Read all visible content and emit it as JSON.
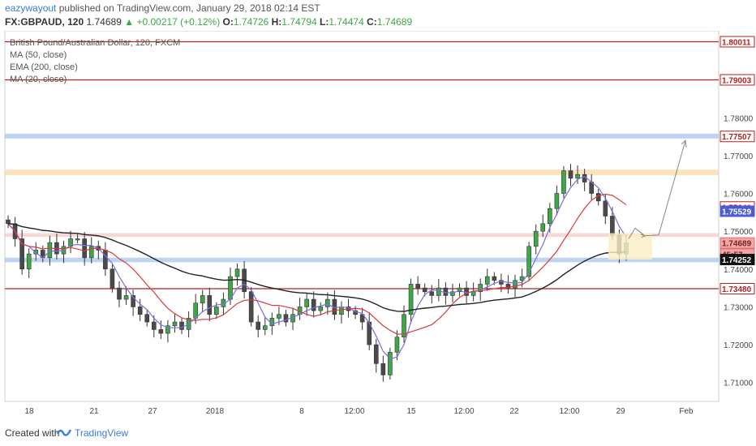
{
  "header": {
    "author": "eazywayout",
    "published_text": "published on TradingView.com, January 29, 2018 02:14 EST",
    "symbol": "FX:GBPAUD, 120",
    "last": "1.74689",
    "change": "+0.00217 (+0.12%)",
    "o_label": "O:",
    "o": "1.74726",
    "h_label": "H:",
    "h": "1.74794",
    "l_label": "L:",
    "l": "1.74474",
    "c_label": "C:",
    "c": "1.74689"
  },
  "legend": {
    "line1": "British Pound/Australian Dollar, 120, FXCM",
    "line2": "MA (50, close)",
    "line3": "EMA (200, close)",
    "line4": "MA (20, close)"
  },
  "footer": {
    "created": "Created with",
    "brand": "TradingView"
  },
  "colors": {
    "up": "#3da946",
    "down": "#e0493c",
    "candle_body": "#4a4a4a",
    "ma20": "#7b6fe0",
    "ma50": "#d63b3b",
    "ema200": "#222222",
    "resistance": "#b22222",
    "orange_zone": "#fbd9a8",
    "blue_zone": "#a9c4ee",
    "pink_zone": "#f6c9c9",
    "yellow_box": "#fbeec4"
  },
  "chart_data": {
    "type": "candlestick",
    "y_range": [
      1.705,
      1.803
    ],
    "y_ticks": [
      "1.71000",
      "1.72000",
      "1.73000",
      "1.74000",
      "1.75000",
      "1.76000",
      "1.77000",
      "1.78000"
    ],
    "x_labels": [
      "18",
      "21",
      "27",
      "2018",
      "8",
      "12:00",
      "15",
      "12:00",
      "22",
      "12:00",
      "29",
      "Feb"
    ],
    "price_labels": [
      {
        "text": "1.80011",
        "value": 1.80011,
        "style": "red"
      },
      {
        "text": "1.79003",
        "value": 1.79003,
        "style": "red"
      },
      {
        "text": "1.77507",
        "value": 1.77507,
        "style": "red"
      },
      {
        "text": "1.75641",
        "value": 1.75641,
        "style": "red"
      },
      {
        "text": "1.75529",
        "value": 1.75529,
        "style": "blue"
      },
      {
        "text": "1.74689",
        "value": 1.74689,
        "style": "pink"
      },
      {
        "text": "45:57",
        "value": 1.74395,
        "style": "pink"
      },
      {
        "text": "1.74252",
        "value": 1.74252,
        "style": "black"
      },
      {
        "text": "1.73480",
        "value": 1.7348,
        "style": "red"
      }
    ],
    "horizontal_lines": [
      1.80011,
      1.79003,
      1.7348
    ],
    "zones": [
      {
        "kind": "blue",
        "from": 1.7745,
        "to": 1.7758
      },
      {
        "kind": "orange",
        "from": 1.7648,
        "to": 1.7663
      },
      {
        "kind": "pink",
        "from": 1.7485,
        "to": 1.7495
      },
      {
        "kind": "blue",
        "from": 1.7418,
        "to": 1.743
      }
    ],
    "close_path": [
      1.752,
      1.748,
      1.74,
      1.744,
      1.745,
      1.743,
      1.747,
      1.744,
      1.746,
      1.748,
      1.748,
      1.743,
      1.746,
      1.745,
      1.74,
      1.735,
      1.732,
      1.733,
      1.73,
      1.728,
      1.726,
      1.724,
      1.723,
      1.725,
      1.726,
      1.724,
      1.727,
      1.731,
      1.733,
      1.728,
      1.73,
      1.732,
      1.738,
      1.74,
      1.734,
      1.726,
      1.724,
      1.725,
      1.727,
      1.728,
      1.726,
      1.728,
      1.73,
      1.732,
      1.729,
      1.73,
      1.732,
      1.728,
      1.73,
      1.729,
      1.728,
      1.726,
      1.72,
      1.715,
      1.712,
      1.718,
      1.722,
      1.728,
      1.736,
      1.735,
      1.734,
      1.733,
      1.735,
      1.733,
      1.734,
      1.735,
      1.733,
      1.734,
      1.736,
      1.738,
      1.737,
      1.736,
      1.735,
      1.737,
      1.738,
      1.746,
      1.75,
      1.752,
      1.756,
      1.76,
      1.766,
      1.764,
      1.765,
      1.763,
      1.76,
      1.758,
      1.754,
      1.749,
      1.744,
      1.7469
    ]
  }
}
